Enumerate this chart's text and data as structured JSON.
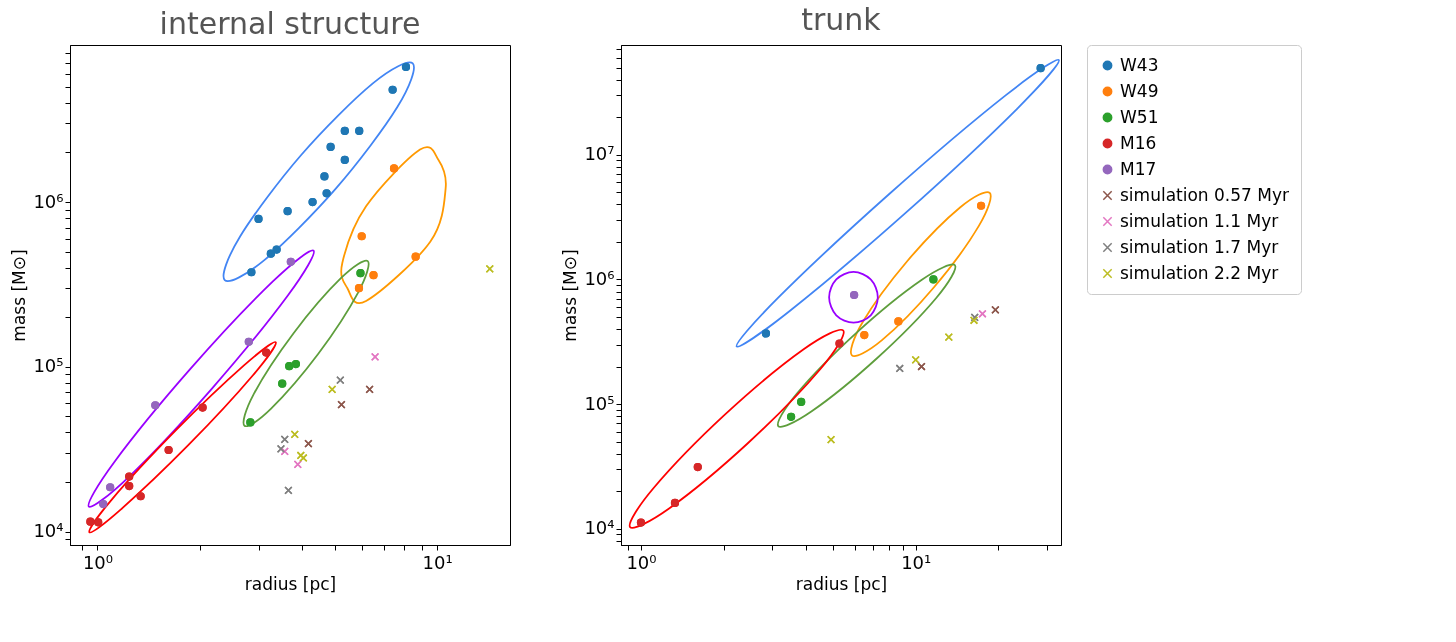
{
  "chart_data": [
    {
      "type": "scatter",
      "title": "internal structure",
      "xlabel": "radius [pc]",
      "ylabel": "mass [M⊙]",
      "log": "xy",
      "grid": false,
      "legend": "right",
      "xlim": [
        0.83,
        16.4
      ],
      "ylim": [
        8300,
        8970000
      ],
      "xticks": [
        {
          "value": 0.9,
          "label": null
        },
        {
          "value": 1,
          "label": "10⁰"
        },
        {
          "value": 2,
          "label": null
        },
        {
          "value": 3,
          "label": null
        },
        {
          "value": 4,
          "label": null
        },
        {
          "value": 5,
          "label": null
        },
        {
          "value": 6,
          "label": null
        },
        {
          "value": 7,
          "label": null
        },
        {
          "value": 8,
          "label": null
        },
        {
          "value": 9,
          "label": null
        },
        {
          "value": 10,
          "label": "10¹"
        }
      ],
      "yticks": [
        {
          "value": 9000,
          "label": null
        },
        {
          "value": 10000,
          "label": "10⁴"
        },
        {
          "value": 20000,
          "label": null
        },
        {
          "value": 30000,
          "label": null
        },
        {
          "value": 40000,
          "label": null
        },
        {
          "value": 50000,
          "label": null
        },
        {
          "value": 60000,
          "label": null
        },
        {
          "value": 70000,
          "label": null
        },
        {
          "value": 80000,
          "label": null
        },
        {
          "value": 90000,
          "label": null
        },
        {
          "value": 100000,
          "label": "10⁵"
        },
        {
          "value": 200000,
          "label": null
        },
        {
          "value": 300000,
          "label": null
        },
        {
          "value": 400000,
          "label": null
        },
        {
          "value": 500000,
          "label": null
        },
        {
          "value": 600000,
          "label": null
        },
        {
          "value": 700000,
          "label": null
        },
        {
          "value": 800000,
          "label": null
        },
        {
          "value": 900000,
          "label": null
        },
        {
          "value": 1000000,
          "label": "10⁶"
        },
        {
          "value": 2000000,
          "label": null
        },
        {
          "value": 3000000,
          "label": null
        },
        {
          "value": 4000000,
          "label": null
        },
        {
          "value": 5000000,
          "label": null
        },
        {
          "value": 6000000,
          "label": null
        },
        {
          "value": 7000000,
          "label": null
        },
        {
          "value": 8000000,
          "label": null
        }
      ],
      "series": [
        {
          "type": "scatter",
          "name": "W43",
          "color": "#1f77b4",
          "marker": "circle",
          "x": [
            8.1,
            7.4,
            5.35,
            5.9,
            4.86,
            5.35,
            4.66,
            4.73,
            4.3,
            3.63,
            2.98,
            3.37,
            3.24,
            2.84
          ],
          "values": [
            6600000,
            4800000,
            2700000,
            2700000,
            2160000,
            1800000,
            1430000,
            1130000,
            1000000,
            880000,
            790000,
            515000,
            486000,
            375000
          ]
        },
        {
          "type": "scatter",
          "name": "W49",
          "color": "#ff7f0e",
          "marker": "circle",
          "x": [
            7.47,
            6.0,
            8.65,
            6.5,
            5.89
          ],
          "values": [
            1600000,
            620000,
            466000,
            360000,
            300000
          ]
        },
        {
          "type": "scatter",
          "name": "W51",
          "color": "#2ca02c",
          "marker": "circle",
          "x": [
            5.95,
            3.67,
            3.84,
            3.5,
            2.82
          ],
          "values": [
            370000,
            101000,
            104000,
            79000,
            46000
          ]
        },
        {
          "type": "scatter",
          "name": "M16",
          "color": "#d62728",
          "marker": "circle",
          "x": [
            3.14,
            2.04,
            1.62,
            1.24,
            1.24,
            1.34,
            0.953,
            1.005
          ],
          "values": [
            122000,
            56600,
            31300,
            21600,
            18900,
            16400,
            11500,
            11400
          ]
        },
        {
          "type": "scatter",
          "name": "M17",
          "color": "#9467bd",
          "marker": "circle",
          "x": [
            3.71,
            2.79,
            1.48,
            1.09,
            1.04
          ],
          "values": [
            434000,
            142000,
            58400,
            18600,
            14700
          ]
        },
        {
          "type": "scatter",
          "name": "simulation 0.57 Myr",
          "color": "#8c564b",
          "marker": "cross",
          "x": [
            6.33,
            5.23,
            4.18
          ],
          "values": [
            73000,
            59000,
            34200
          ]
        },
        {
          "type": "scatter",
          "name": "simulation 1.1 Myr",
          "color": "#e377c2",
          "marker": "cross",
          "x": [
            6.57,
            3.56,
            3.89
          ],
          "values": [
            115000,
            30700,
            25600
          ]
        },
        {
          "type": "scatter",
          "name": "simulation 1.7 Myr",
          "color": "#7f7f7f",
          "marker": "cross",
          "x": [
            5.19,
            3.56,
            3.47,
            3.65
          ],
          "values": [
            83000,
            36300,
            31800,
            17800
          ]
        },
        {
          "type": "scatter",
          "name": "simulation 2.2 Myr",
          "color": "#bcbd22",
          "marker": "cross",
          "x": [
            4.91,
            3.81,
            3.97,
            4.04,
            14.3
          ],
          "values": [
            73000,
            38900,
            29000,
            28000,
            393000
          ]
        }
      ]
    },
    {
      "type": "scatter",
      "title": "trunk",
      "xlabel": "radius [pc]",
      "ylabel": "mass [M⊙]",
      "log": "xy",
      "grid": false,
      "legend": "right",
      "xlim": [
        0.846,
        33.8
      ],
      "ylim": [
        7400,
        76000000
      ],
      "xticks": [
        {
          "value": 0.9,
          "label": null
        },
        {
          "value": 1,
          "label": "10⁰"
        },
        {
          "value": 2,
          "label": null
        },
        {
          "value": 3,
          "label": null
        },
        {
          "value": 4,
          "label": null
        },
        {
          "value": 5,
          "label": null
        },
        {
          "value": 6,
          "label": null
        },
        {
          "value": 7,
          "label": null
        },
        {
          "value": 8,
          "label": null
        },
        {
          "value": 9,
          "label": null
        },
        {
          "value": 10,
          "label": "10¹"
        },
        {
          "value": 20,
          "label": null
        },
        {
          "value": 30,
          "label": null
        }
      ],
      "yticks": [
        {
          "value": 8000,
          "label": null
        },
        {
          "value": 9000,
          "label": null
        },
        {
          "value": 10000,
          "label": "10⁴"
        },
        {
          "value": 20000,
          "label": null
        },
        {
          "value": 30000,
          "label": null
        },
        {
          "value": 40000,
          "label": null
        },
        {
          "value": 50000,
          "label": null
        },
        {
          "value": 60000,
          "label": null
        },
        {
          "value": 70000,
          "label": null
        },
        {
          "value": 80000,
          "label": null
        },
        {
          "value": 90000,
          "label": null
        },
        {
          "value": 100000,
          "label": "10⁵"
        },
        {
          "value": 200000,
          "label": null
        },
        {
          "value": 300000,
          "label": null
        },
        {
          "value": 400000,
          "label": null
        },
        {
          "value": 500000,
          "label": null
        },
        {
          "value": 600000,
          "label": null
        },
        {
          "value": 700000,
          "label": null
        },
        {
          "value": 800000,
          "label": null
        },
        {
          "value": 900000,
          "label": null
        },
        {
          "value": 1000000,
          "label": "10⁶"
        },
        {
          "value": 2000000,
          "label": null
        },
        {
          "value": 3000000,
          "label": null
        },
        {
          "value": 4000000,
          "label": null
        },
        {
          "value": 5000000,
          "label": null
        },
        {
          "value": 6000000,
          "label": null
        },
        {
          "value": 7000000,
          "label": null
        },
        {
          "value": 8000000,
          "label": null
        },
        {
          "value": 9000000,
          "label": null
        },
        {
          "value": 10000000,
          "label": "10⁷"
        },
        {
          "value": 20000000,
          "label": null
        },
        {
          "value": 30000000,
          "label": null
        },
        {
          "value": 40000000,
          "label": null
        },
        {
          "value": 50000000,
          "label": null
        },
        {
          "value": 60000000,
          "label": null
        },
        {
          "value": 70000000,
          "label": null
        }
      ],
      "series": [
        {
          "type": "scatter",
          "name": "W43",
          "color": "#1f77b4",
          "marker": "circle",
          "x": [
            28.5,
            2.85
          ],
          "values": [
            49500000,
            369000
          ]
        },
        {
          "type": "scatter",
          "name": "W49",
          "color": "#ff7f0e",
          "marker": "circle",
          "x": [
            17.3,
            8.65,
            6.5
          ],
          "values": [
            3900000,
            460000,
            358000
          ]
        },
        {
          "type": "scatter",
          "name": "W51",
          "color": "#2ca02c",
          "marker": "circle",
          "x": [
            11.6,
            3.83,
            3.52
          ],
          "values": [
            1000000,
            104000,
            79000
          ]
        },
        {
          "type": "scatter",
          "name": "M16",
          "color": "#d62728",
          "marker": "circle",
          "x": [
            5.28,
            1.61,
            1.33,
            1.0
          ],
          "values": [
            306000,
            31200,
            16100,
            11200
          ]
        },
        {
          "type": "scatter",
          "name": "M17",
          "color": "#9467bd",
          "marker": "circle",
          "x": [
            5.97
          ],
          "values": [
            750000
          ]
        },
        {
          "type": "scatter",
          "name": "simulation 0.57 Myr",
          "color": "#8c564b",
          "marker": "cross",
          "x": [
            19.5,
            10.5
          ],
          "values": [
            570000,
            200000
          ]
        },
        {
          "type": "scatter",
          "name": "simulation 1.1 Myr",
          "color": "#e377c2",
          "marker": "cross",
          "x": [
            17.5
          ],
          "values": [
            530000
          ]
        },
        {
          "type": "scatter",
          "name": "simulation 1.7 Myr",
          "color": "#7f7f7f",
          "marker": "cross",
          "x": [
            16.4,
            8.75
          ],
          "values": [
            496000,
            193000
          ]
        },
        {
          "type": "scatter",
          "name": "simulation 2.2 Myr",
          "color": "#bcbd22",
          "marker": "cross",
          "x": [
            16.3,
            13.2,
            10.0,
            4.92
          ],
          "values": [
            470000,
            344000,
            226000,
            51900
          ]
        }
      ]
    }
  ]
}
